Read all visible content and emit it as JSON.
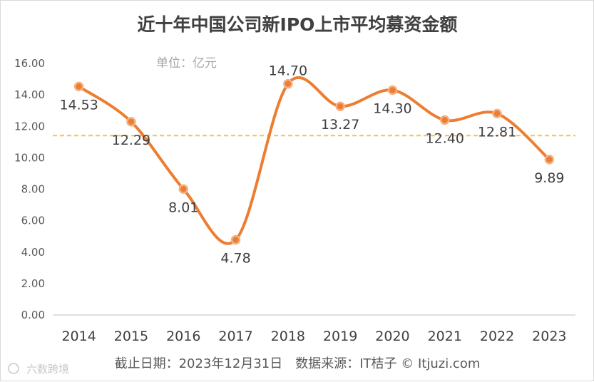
{
  "chart_data": {
    "type": "line",
    "title": "近十年中国公司新IPO上市平均募资金额",
    "unit_note": "单位：亿元",
    "categories": [
      "2014",
      "2015",
      "2016",
      "2017",
      "2018",
      "2019",
      "2020",
      "2021",
      "2022",
      "2023"
    ],
    "values": [
      14.53,
      12.29,
      8.01,
      4.78,
      14.7,
      13.27,
      14.3,
      12.4,
      12.81,
      9.89
    ],
    "value_labels": [
      "14.53",
      "12.29",
      "8.01",
      "4.78",
      "14.70",
      "13.27",
      "14.30",
      "12.40",
      "12.81",
      "9.89"
    ],
    "label_positions": [
      "below",
      "below",
      "below",
      "below",
      "above",
      "below",
      "below",
      "below",
      "below",
      "below"
    ],
    "ylim": [
      0,
      16
    ],
    "yticks": [
      0,
      2,
      4,
      6,
      8,
      10,
      12,
      14,
      16
    ],
    "ytick_labels": [
      "0.00",
      "2.00",
      "4.00",
      "6.00",
      "8.00",
      "10.00",
      "12.00",
      "14.00",
      "16.00"
    ],
    "average_line": 11.41,
    "smooth": true,
    "colors": {
      "line": "#ed7d31",
      "marker_fill": "#ed7d31",
      "marker_stroke": "#f4b183",
      "average": "#f5c242",
      "axis": "#bfbfbf"
    }
  },
  "footer": {
    "source": "截止日期：2023年12月31日　数据来源：IT桔子 © Itjuzi.com"
  },
  "watermark": "六数跨境"
}
